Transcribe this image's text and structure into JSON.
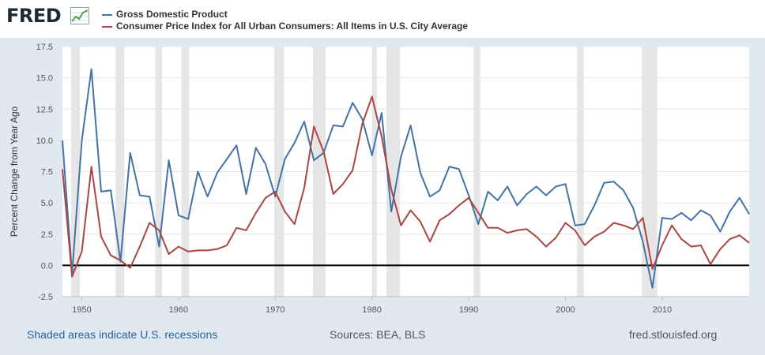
{
  "header": {
    "logo_text": "FRED",
    "logo_icon": "chart-line-icon"
  },
  "chart_data": {
    "type": "line",
    "xlabel": "",
    "ylabel": "Percent Change from Year Ago",
    "xlim": [
      1948,
      2019
    ],
    "ylim": [
      -2.5,
      17.5
    ],
    "yticks": [
      -2.5,
      0,
      2.5,
      5,
      7.5,
      10,
      12.5,
      15,
      17.5
    ],
    "ytick_labels": [
      "-2.5",
      "0.0",
      "2.5",
      "5.0",
      "7.5",
      "10.0",
      "12.5",
      "15.0",
      "17.5"
    ],
    "xticks": [
      1950,
      1960,
      1970,
      1980,
      1990,
      2000,
      2010
    ],
    "xtick_labels": [
      "1950",
      "1960",
      "1970",
      "1980",
      "1990",
      "2000",
      "2010"
    ],
    "grid": true,
    "recessions": [
      [
        1948.9,
        1949.8
      ],
      [
        1953.5,
        1954.4
      ],
      [
        1957.6,
        1958.3
      ],
      [
        1960.3,
        1961.1
      ],
      [
        1969.9,
        1970.9
      ],
      [
        1973.9,
        1975.2
      ],
      [
        1980.0,
        1980.5
      ],
      [
        1981.5,
        1982.9
      ],
      [
        1990.5,
        1991.2
      ],
      [
        2001.2,
        2001.9
      ],
      [
        2007.9,
        2009.5
      ]
    ],
    "x": [
      1948,
      1949,
      1950,
      1951,
      1952,
      1953,
      1954,
      1955,
      1956,
      1957,
      1958,
      1959,
      1960,
      1961,
      1962,
      1963,
      1964,
      1965,
      1966,
      1967,
      1968,
      1969,
      1970,
      1971,
      1972,
      1973,
      1974,
      1975,
      1976,
      1977,
      1978,
      1979,
      1980,
      1981,
      1982,
      1983,
      1984,
      1985,
      1986,
      1987,
      1988,
      1989,
      1990,
      1991,
      1992,
      1993,
      1994,
      1995,
      1996,
      1997,
      1998,
      1999,
      2000,
      2001,
      2002,
      2003,
      2004,
      2005,
      2006,
      2007,
      2008,
      2009,
      2010,
      2011,
      2012,
      2013,
      2014,
      2015,
      2016,
      2017,
      2018,
      2019
    ],
    "series": [
      {
        "name": "Gross Domestic Product",
        "color": "#4572a7",
        "values": [
          10.0,
          -0.7,
          10.0,
          15.7,
          5.9,
          6.0,
          0.3,
          9.0,
          5.6,
          5.5,
          1.5,
          8.4,
          4.0,
          3.7,
          7.5,
          5.5,
          7.4,
          8.5,
          9.6,
          5.7,
          9.4,
          8.1,
          5.5,
          8.5,
          9.8,
          11.5,
          8.4,
          9.0,
          11.2,
          11.1,
          13.0,
          11.7,
          8.8,
          12.2,
          4.3,
          8.7,
          11.2,
          7.4,
          5.5,
          6.0,
          7.9,
          7.7,
          5.6,
          3.3,
          5.9,
          5.2,
          6.3,
          4.8,
          5.7,
          6.3,
          5.6,
          6.3,
          6.5,
          3.2,
          3.3,
          4.8,
          6.6,
          6.7,
          6.0,
          4.6,
          1.9,
          -1.8,
          3.8,
          3.7,
          4.2,
          3.6,
          4.4,
          4.0,
          2.7,
          4.3,
          5.4,
          4.1
        ]
      },
      {
        "name": "Consumer Price Index for All Urban Consumers: All Items in U.S. City Average",
        "color": "#aa4643",
        "values": [
          7.7,
          -0.9,
          1.1,
          7.9,
          2.3,
          0.8,
          0.4,
          -0.2,
          1.5,
          3.4,
          2.8,
          0.9,
          1.5,
          1.1,
          1.2,
          1.2,
          1.3,
          1.6,
          3.0,
          2.8,
          4.2,
          5.4,
          5.9,
          4.3,
          3.3,
          6.2,
          11.1,
          9.1,
          5.7,
          6.5,
          7.6,
          11.3,
          13.5,
          10.3,
          6.1,
          3.2,
          4.4,
          3.5,
          1.9,
          3.6,
          4.1,
          4.8,
          5.4,
          4.2,
          3.0,
          3.0,
          2.6,
          2.8,
          2.9,
          2.3,
          1.5,
          2.2,
          3.4,
          2.8,
          1.6,
          2.3,
          2.7,
          3.4,
          3.2,
          2.9,
          3.8,
          -0.3,
          1.6,
          3.2,
          2.1,
          1.5,
          1.6,
          0.1,
          1.3,
          2.1,
          2.4,
          1.8
        ]
      }
    ]
  },
  "footer": {
    "recession_note": "Shaded areas indicate U.S. recessions",
    "sources": "Sources: BEA, BLS",
    "site": "fred.stlouisfed.org"
  }
}
